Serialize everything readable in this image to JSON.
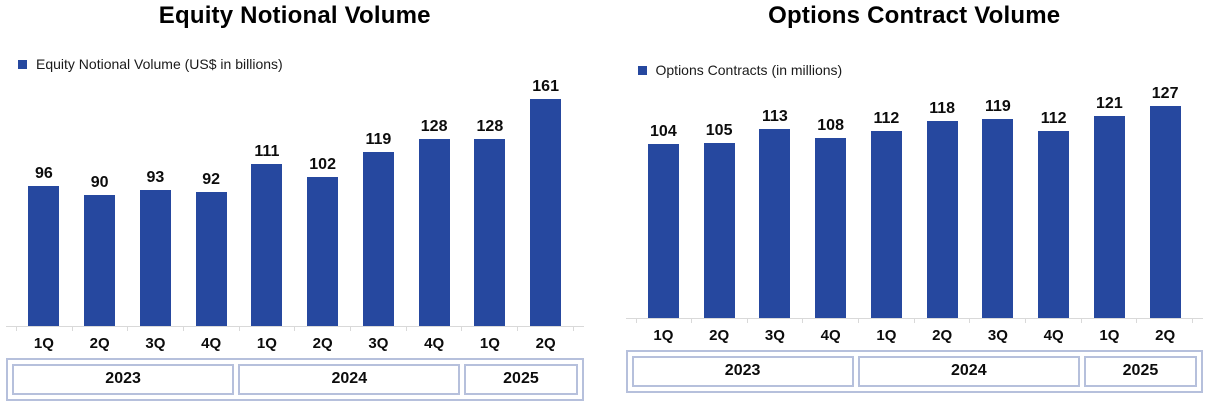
{
  "colors": {
    "bar": "#26489F",
    "year_band_border": "#B6C0DC",
    "axis_line": "#D9D9D9"
  },
  "chart_data": [
    {
      "type": "bar",
      "title": "Equity Notional Volume",
      "legend": "Equity Notional Volume (US$ in billions)",
      "legend_position": "top-left",
      "categories": [
        "1Q",
        "2Q",
        "3Q",
        "4Q",
        "1Q",
        "2Q",
        "3Q",
        "4Q",
        "1Q",
        "2Q"
      ],
      "year_groups": [
        {
          "label": "2023",
          "span": 4
        },
        {
          "label": "2024",
          "span": 4
        },
        {
          "label": "2025",
          "span": 2
        }
      ],
      "values": [
        96,
        90,
        93,
        92,
        111,
        102,
        119,
        128,
        128,
        161
      ],
      "ylim": [
        0,
        170
      ],
      "grid": false,
      "data_labels": true
    },
    {
      "type": "bar",
      "title": "Options Contract Volume",
      "legend": "Options Contracts (in millions)",
      "legend_position": "top-left",
      "categories": [
        "1Q",
        "2Q",
        "3Q",
        "4Q",
        "1Q",
        "2Q",
        "3Q",
        "4Q",
        "1Q",
        "2Q"
      ],
      "year_groups": [
        {
          "label": "2023",
          "span": 4
        },
        {
          "label": "2024",
          "span": 4
        },
        {
          "label": "2025",
          "span": 2
        }
      ],
      "values": [
        104,
        105,
        113,
        108,
        112,
        118,
        119,
        112,
        121,
        127
      ],
      "ylim": [
        0,
        140
      ],
      "grid": false,
      "data_labels": true
    }
  ]
}
